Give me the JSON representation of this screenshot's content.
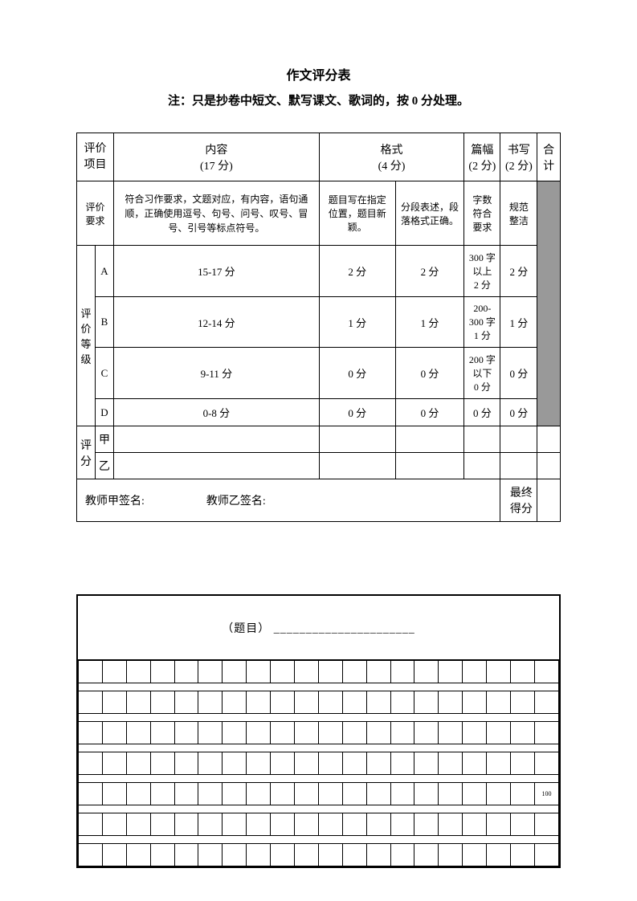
{
  "title": "作文评分表",
  "note": "注：只是抄卷中短文、默写课文、歌词的，按 0 分处理。",
  "headers": {
    "col1": "评价\n项目",
    "content": "内容",
    "content_pts": "(17 分)",
    "format": "格式",
    "format_pts": "(4 分)",
    "length": "篇幅",
    "length_pts": "(2 分)",
    "writing": "书写",
    "writing_pts": "(2 分)",
    "total": "合计"
  },
  "requirements": {
    "label": "评价\n要求",
    "content": "符合习作要求，文题对应，有内容，语句通顺，正确使用逗号、句号、问号、叹号、冒号、引号等标点符号。",
    "format1": "题目写在指定位置，题目新颖。",
    "format2": "分段表述，段落格式正确。",
    "length": "字数\n符合\n要求",
    "writing": "规范\n整洁"
  },
  "grade_label": "评\n价\n等\n级",
  "grades": [
    {
      "g": "A",
      "c": "15-17 分",
      "f1": "2 分",
      "f2": "2 分",
      "l": "300 字以上\n2 分",
      "w": "2 分"
    },
    {
      "g": "B",
      "c": "12-14 分",
      "f1": "1 分",
      "f2": "1 分",
      "l": "200-300 字\n1 分",
      "w": "1 分"
    },
    {
      "g": "C",
      "c": "9-11 分",
      "f1": "0 分",
      "f2": "0 分",
      "l": "200 字以下\n0 分",
      "w": "0 分"
    },
    {
      "g": "D",
      "c": "0-8 分",
      "f1": "0 分",
      "f2": "0 分",
      "l": "0 分",
      "w": "0 分"
    }
  ],
  "score_label": "评\n分",
  "score_rows": [
    "甲",
    "乙"
  ],
  "signature": {
    "a": "教师甲签名:",
    "b": "教师乙签名:",
    "final": "最终得分"
  },
  "essay_title_label": "（题目）",
  "essay_title_line": "______________________",
  "mark100": "100"
}
